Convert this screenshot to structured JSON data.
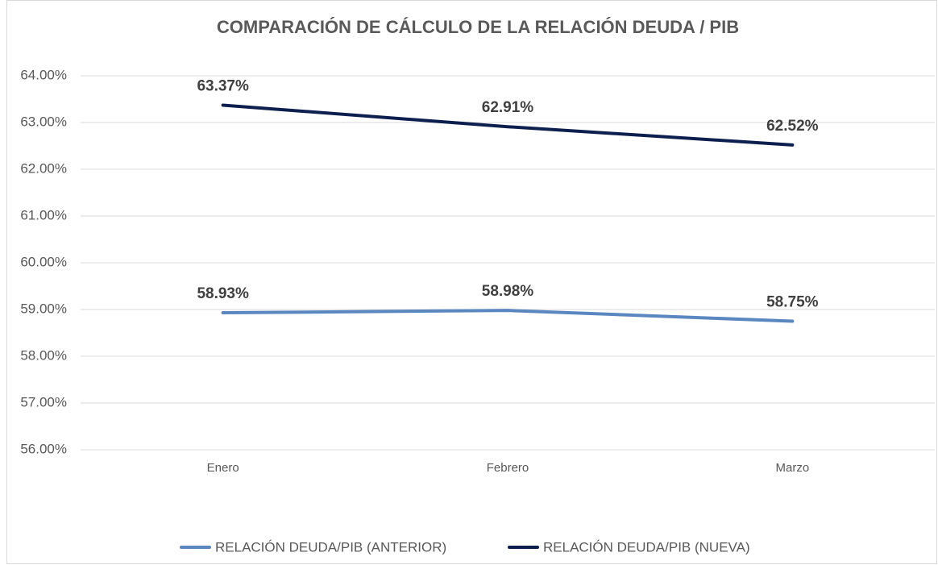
{
  "chart_data": {
    "type": "line",
    "title": "COMPARACIÓN DE CÁLCULO DE LA RELACIÓN DEUDA / PIB",
    "categories": [
      "Enero",
      "Febrero",
      "Marzo"
    ],
    "series": [
      {
        "name": "RELACIÓN DEUDA/PIB (ANTERIOR)",
        "color": "#5b87c0",
        "values": [
          58.93,
          58.98,
          58.75
        ],
        "value_labels": [
          "58.93%",
          "58.98%",
          "58.75%"
        ]
      },
      {
        "name": "RELACIÓN DEUDA/PIB (NUEVA)",
        "color": "#0d1f4e",
        "values": [
          63.37,
          62.91,
          62.52
        ],
        "value_labels": [
          "63.37%",
          "62.91%",
          "62.52%"
        ]
      }
    ],
    "ylim": [
      56,
      64
    ],
    "yticks": [
      {
        "value": 56,
        "label": "56.00%"
      },
      {
        "value": 57,
        "label": "57.00%"
      },
      {
        "value": 58,
        "label": "58.00%"
      },
      {
        "value": 59,
        "label": "59.00%"
      },
      {
        "value": 60,
        "label": "60.00%"
      },
      {
        "value": 61,
        "label": "61.00%"
      },
      {
        "value": 62,
        "label": "62.00%"
      },
      {
        "value": 63,
        "label": "63.00%"
      },
      {
        "value": 64,
        "label": "64.00%"
      }
    ],
    "grid": true,
    "legend": "bottom"
  }
}
